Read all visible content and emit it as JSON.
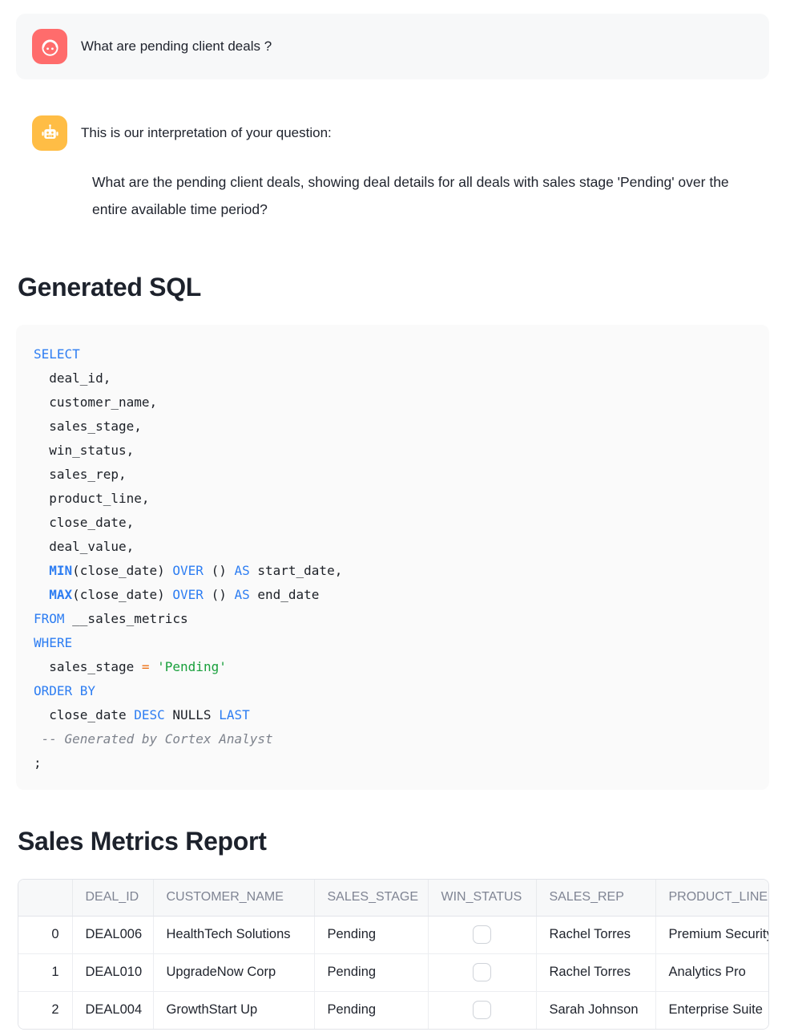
{
  "user_message": {
    "text": "What are pending client deals ?"
  },
  "assistant": {
    "intro": "This is our interpretation of your question:",
    "interpretation": "What are the pending client deals, showing deal details for all deals with sales stage 'Pending' over the entire available time period?"
  },
  "sql_section": {
    "title": "Generated SQL",
    "code_lines": [
      [
        {
          "t": "SELECT",
          "c": "k"
        }
      ],
      [
        {
          "t": "  deal_id,",
          "c": "p"
        }
      ],
      [
        {
          "t": "  customer_name,",
          "c": "p"
        }
      ],
      [
        {
          "t": "  sales_stage,",
          "c": "p"
        }
      ],
      [
        {
          "t": "  win_status,",
          "c": "p"
        }
      ],
      [
        {
          "t": "  sales_rep,",
          "c": "p"
        }
      ],
      [
        {
          "t": "  product_line,",
          "c": "p"
        }
      ],
      [
        {
          "t": "  close_date,",
          "c": "p"
        }
      ],
      [
        {
          "t": "  deal_value,",
          "c": "p"
        }
      ],
      [
        {
          "t": "  ",
          "c": "p"
        },
        {
          "t": "MIN",
          "c": "kb"
        },
        {
          "t": "(close_date) ",
          "c": "p"
        },
        {
          "t": "OVER",
          "c": "k"
        },
        {
          "t": " () ",
          "c": "p"
        },
        {
          "t": "AS",
          "c": "k"
        },
        {
          "t": " start_date,",
          "c": "p"
        }
      ],
      [
        {
          "t": "  ",
          "c": "p"
        },
        {
          "t": "MAX",
          "c": "kb"
        },
        {
          "t": "(close_date) ",
          "c": "p"
        },
        {
          "t": "OVER",
          "c": "k"
        },
        {
          "t": " () ",
          "c": "p"
        },
        {
          "t": "AS",
          "c": "k"
        },
        {
          "t": " end_date",
          "c": "p"
        }
      ],
      [
        {
          "t": "FROM",
          "c": "k"
        },
        {
          "t": " __sales_metrics",
          "c": "p"
        }
      ],
      [
        {
          "t": "WHERE",
          "c": "k"
        }
      ],
      [
        {
          "t": "  sales_stage ",
          "c": "p"
        },
        {
          "t": "=",
          "c": "o"
        },
        {
          "t": " ",
          "c": "p"
        },
        {
          "t": "'Pending'",
          "c": "s"
        }
      ],
      [
        {
          "t": "ORDER BY",
          "c": "k"
        }
      ],
      [
        {
          "t": "  close_date ",
          "c": "p"
        },
        {
          "t": "DESC",
          "c": "k"
        },
        {
          "t": " NULLS ",
          "c": "p"
        },
        {
          "t": "LAST",
          "c": "k"
        }
      ],
      [
        {
          "t": " -- Generated by Cortex Analyst",
          "c": "c"
        }
      ],
      [
        {
          "t": ";",
          "c": "p"
        }
      ]
    ]
  },
  "report": {
    "title": "Sales Metrics Report",
    "columns": [
      "",
      "DEAL_ID",
      "CUSTOMER_NAME",
      "SALES_STAGE",
      "WIN_STATUS",
      "SALES_REP",
      "PRODUCT_LINE"
    ],
    "rows": [
      {
        "index": "0",
        "deal_id": "DEAL006",
        "customer_name": "HealthTech Solutions",
        "sales_stage": "Pending",
        "win_status": false,
        "sales_rep": "Rachel Torres",
        "product_line": "Premium Security"
      },
      {
        "index": "1",
        "deal_id": "DEAL010",
        "customer_name": "UpgradeNow Corp",
        "sales_stage": "Pending",
        "win_status": false,
        "sales_rep": "Rachel Torres",
        "product_line": "Analytics Pro"
      },
      {
        "index": "2",
        "deal_id": "DEAL004",
        "customer_name": "GrowthStart Up",
        "sales_stage": "Pending",
        "win_status": false,
        "sales_rep": "Sarah Johnson",
        "product_line": "Enterprise Suite"
      }
    ]
  },
  "colors": {
    "user_avatar": "#ff6c6c",
    "assistant_avatar": "#ffbd45",
    "sql_keyword_blue": "#2d7df2",
    "sql_string_green": "#19a03c",
    "sql_operator_orange": "#ed7014",
    "sql_comment_gray": "#7d828c"
  }
}
